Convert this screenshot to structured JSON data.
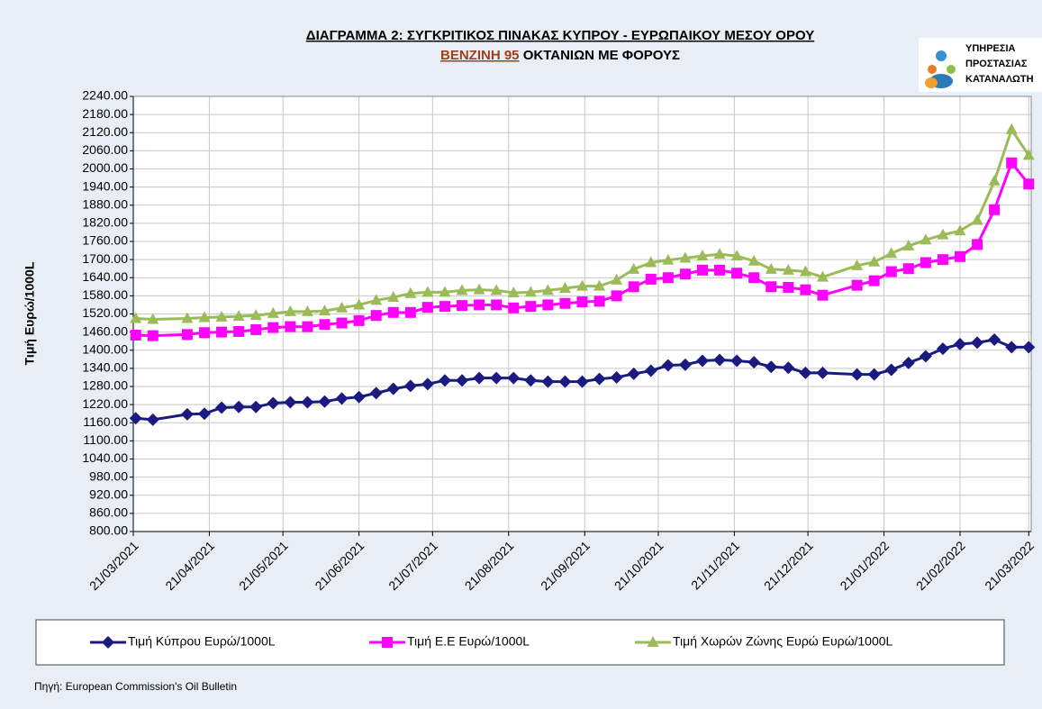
{
  "chart_data": {
    "type": "line",
    "title": "ΔΙΑΓΡΑΜΜΑ 2: ΣΥΓΚΡΙΤΙΚΟΣ ΠΙΝΑΚΑΣ ΚΥΠΡΟΥ - ΕΥΡΩΠΑΙΚΟΥ ΜΕΣΟΥ ΟΡΟΥ",
    "subtitle": [
      "ΒΕΝΖΙΝΗ 95",
      "ΟΚΤΑΝΙΩΝ ΜΕ ΦΟΡΟΥΣ"
    ],
    "y_label": "Τιμή Ευρώ/1000L",
    "x": [
      "2021-03-22",
      "2021-03-29",
      "2021-04-12",
      "2021-04-19",
      "2021-04-26",
      "2021-05-03",
      "2021-05-10",
      "2021-05-17",
      "2021-05-24",
      "2021-05-31",
      "2021-06-07",
      "2021-06-14",
      "2021-06-21",
      "2021-06-28",
      "2021-07-05",
      "2021-07-12",
      "2021-07-19",
      "2021-07-26",
      "2021-08-02",
      "2021-08-09",
      "2021-08-16",
      "2021-08-23",
      "2021-08-30",
      "2021-09-06",
      "2021-09-13",
      "2021-09-20",
      "2021-09-27",
      "2021-10-04",
      "2021-10-11",
      "2021-10-18",
      "2021-10-25",
      "2021-11-01",
      "2021-11-08",
      "2021-11-15",
      "2021-11-22",
      "2021-11-29",
      "2021-12-06",
      "2021-12-13",
      "2021-12-20",
      "2021-12-27",
      "2022-01-10",
      "2022-01-17",
      "2022-01-24",
      "2022-01-31",
      "2022-02-07",
      "2022-02-14",
      "2022-02-21",
      "2022-02-28",
      "2022-03-07",
      "2022-03-14",
      "2022-03-21"
    ],
    "series": [
      {
        "name": "Τιμή Κύπρου Ευρώ/1000L",
        "color": "#1a1a80",
        "marker": "diamond",
        "values": [
          1175,
          1170,
          1188,
          1190,
          1210,
          1212,
          1212,
          1225,
          1228,
          1228,
          1230,
          1240,
          1245,
          1258,
          1272,
          1282,
          1288,
          1300,
          1300,
          1308,
          1308,
          1308,
          1300,
          1296,
          1296,
          1296,
          1305,
          1310,
          1322,
          1332,
          1350,
          1352,
          1365,
          1368,
          1365,
          1360,
          1345,
          1342,
          1325,
          1325,
          1320,
          1320,
          1335,
          1358,
          1380,
          1405,
          1420,
          1425,
          1435,
          1410,
          1410
        ]
      },
      {
        "name": "Τιμή Ε.Ε Ευρώ/1000L",
        "color": "#ff00ff",
        "marker": "square",
        "values": [
          1450,
          1448,
          1452,
          1458,
          1460,
          1462,
          1468,
          1475,
          1478,
          1478,
          1485,
          1490,
          1498,
          1515,
          1525,
          1525,
          1542,
          1545,
          1548,
          1550,
          1550,
          1540,
          1545,
          1550,
          1555,
          1560,
          1562,
          1580,
          1610,
          1635,
          1640,
          1652,
          1665,
          1665,
          1655,
          1640,
          1610,
          1608,
          1600,
          1582,
          1615,
          1630,
          1660,
          1670,
          1690,
          1700,
          1710,
          1750,
          1865,
          2020,
          1950
        ]
      },
      {
        "name": "Τιμή Χωρών Ζώνης Ευρώ Ευρώ/1000L",
        "color": "#9bbb59",
        "marker": "triangle",
        "values": [
          1505,
          1502,
          1505,
          1508,
          1510,
          1512,
          1515,
          1522,
          1528,
          1528,
          1530,
          1540,
          1550,
          1565,
          1575,
          1588,
          1592,
          1592,
          1598,
          1600,
          1598,
          1590,
          1592,
          1598,
          1605,
          1612,
          1612,
          1632,
          1668,
          1690,
          1698,
          1705,
          1712,
          1718,
          1712,
          1695,
          1668,
          1665,
          1660,
          1642,
          1680,
          1692,
          1720,
          1745,
          1765,
          1782,
          1795,
          1830,
          1960,
          2130,
          2045
        ]
      }
    ],
    "xlim": [
      "2021-03-21",
      "2022-03-22"
    ],
    "xticks": [
      {
        "value": "2021-03-21",
        "label": "21/03/2021"
      },
      {
        "value": "2021-04-21",
        "label": "21/04/2021"
      },
      {
        "value": "2021-05-21",
        "label": "21/05/2021"
      },
      {
        "value": "2021-06-21",
        "label": "21/06/2021"
      },
      {
        "value": "2021-07-21",
        "label": "21/07/2021"
      },
      {
        "value": "2021-08-21",
        "label": "21/08/2021"
      },
      {
        "value": "2021-09-21",
        "label": "21/09/2021"
      },
      {
        "value": "2021-10-21",
        "label": "21/10/2021"
      },
      {
        "value": "2021-11-21",
        "label": "21/11/2021"
      },
      {
        "value": "2021-12-21",
        "label": "21/12/2021"
      },
      {
        "value": "2022-01-21",
        "label": "21/01/2022"
      },
      {
        "value": "2022-02-21",
        "label": "21/02/2022"
      },
      {
        "value": "2022-03-21",
        "label": "21/03/2022"
      }
    ],
    "ylim": [
      800,
      2240
    ],
    "yticks": [
      {
        "value": 800,
        "label": "800.00"
      },
      {
        "value": 860,
        "label": "860.00"
      },
      {
        "value": 920,
        "label": "920.00"
      },
      {
        "value": 980,
        "label": "980.00"
      },
      {
        "value": 1040,
        "label": "1040.00"
      },
      {
        "value": 1100,
        "label": "1100.00"
      },
      {
        "value": 1160,
        "label": "1160.00"
      },
      {
        "value": 1220,
        "label": "1220.00"
      },
      {
        "value": 1280,
        "label": "1280.00"
      },
      {
        "value": 1340,
        "label": "1340.00"
      },
      {
        "value": 1400,
        "label": "1400.00"
      },
      {
        "value": 1460,
        "label": "1460.00"
      },
      {
        "value": 1520,
        "label": "1520.00"
      },
      {
        "value": 1580,
        "label": "1580.00"
      },
      {
        "value": 1640,
        "label": "1640.00"
      },
      {
        "value": 1700,
        "label": "1700.00"
      },
      {
        "value": 1760,
        "label": "1760.00"
      },
      {
        "value": 1820,
        "label": "1820.00"
      },
      {
        "value": 1880,
        "label": "1880.00"
      },
      {
        "value": 1940,
        "label": "1940.00"
      },
      {
        "value": 2000,
        "label": "2000.00"
      },
      {
        "value": 2060,
        "label": "2060.00"
      },
      {
        "value": 2120,
        "label": "2120.00"
      },
      {
        "value": 2180,
        "label": "2180.00"
      },
      {
        "value": 2240,
        "label": "2240.00"
      }
    ],
    "grid": true,
    "legend": "bottom",
    "source": "Πηγή: European Commission's Oil Bulletin"
  },
  "logo": [
    "ΥΠΗΡΕΣΙΑ",
    "ΠΡΟΣΤΑΣΙΑΣ",
    "ΚΑΤΑΝΑΛΩΤΗ"
  ]
}
